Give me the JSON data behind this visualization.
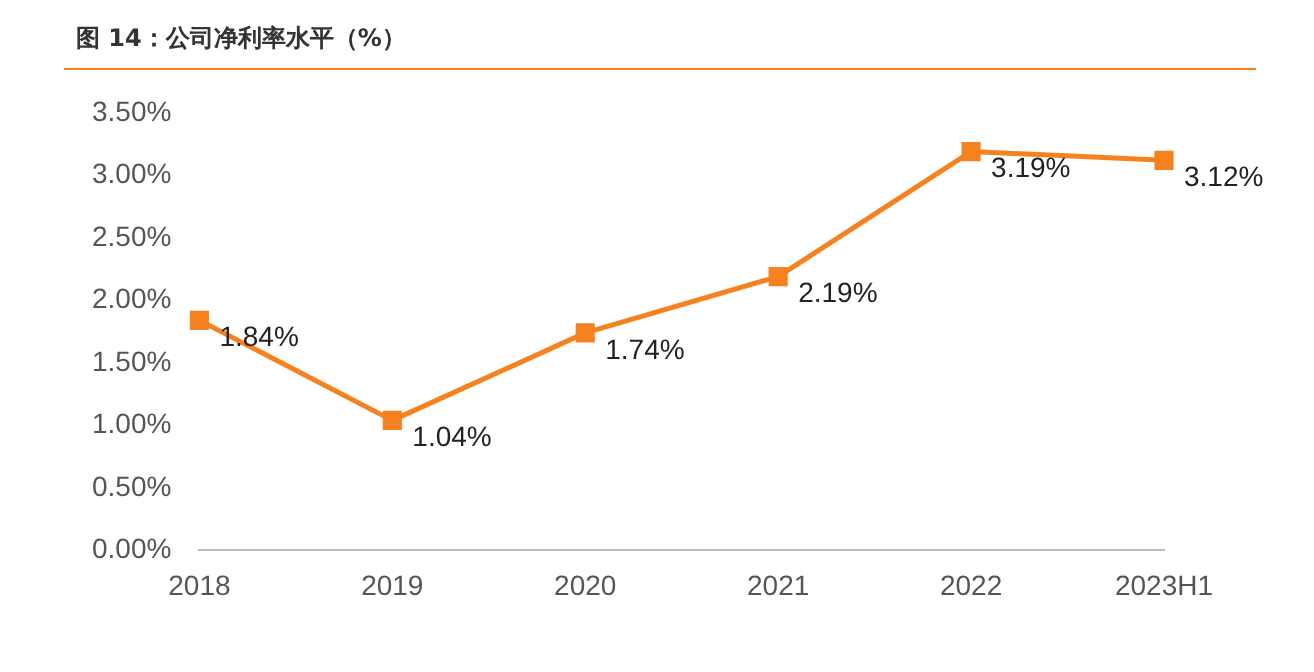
{
  "chart_data": {
    "type": "line",
    "title": "图 14：公司净利率水平（%）",
    "categories": [
      "2018",
      "2019",
      "2020",
      "2021",
      "2022",
      "2023H1"
    ],
    "series": [
      {
        "color": "#f5821f",
        "values": [
          1.84,
          1.04,
          1.74,
          2.19,
          3.19,
          3.12
        ],
        "value_labels": [
          "1.84%",
          "1.04%",
          "1.74%",
          "2.19%",
          "3.19%",
          "3.12%"
        ]
      }
    ],
    "ylim": [
      0,
      3.5
    ],
    "yticks": [
      {
        "value": 0,
        "label": "0.00%"
      },
      {
        "value": 0.5,
        "label": "0.50%"
      },
      {
        "value": 1,
        "label": "1.00%"
      },
      {
        "value": 1.5,
        "label": "1.50%"
      },
      {
        "value": 2,
        "label": "2.00%"
      },
      {
        "value": 2.5,
        "label": "2.50%"
      },
      {
        "value": 3,
        "label": "3.00%"
      },
      {
        "value": 3.5,
        "label": "3.50%"
      }
    ],
    "grid": false,
    "legend": false,
    "marker": "square",
    "line_style": "solid"
  }
}
